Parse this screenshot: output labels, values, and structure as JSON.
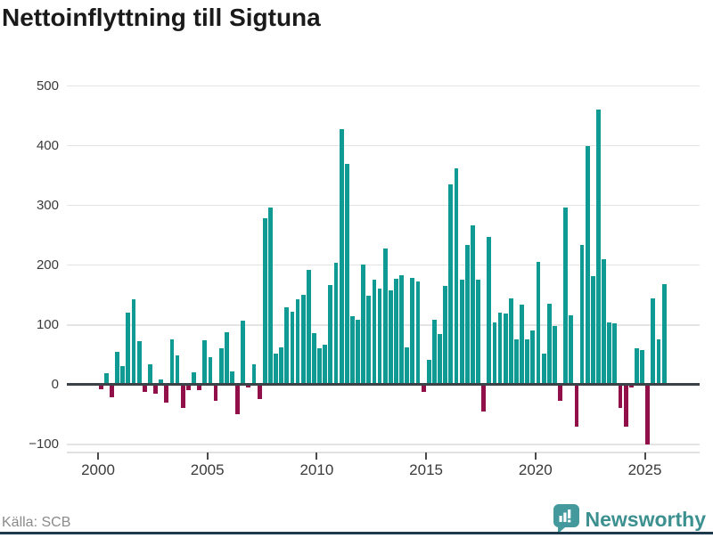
{
  "title": "Nettoinflyttning till Sigtuna",
  "source": "Källa: SCB",
  "brand": {
    "name": "Newsworthy"
  },
  "colors": {
    "positive": "#0f9b94",
    "negative": "#91104a",
    "grid": "#e4e4e4",
    "zero_line": "#3b4248",
    "axis_text": "#3a3a3a",
    "title_text": "#1a1a1a",
    "source_text": "#8b8b8b",
    "brand_teal": "#43999b",
    "bottom_strip": "#1d3a4f"
  },
  "chart_data": {
    "type": "bar",
    "title": "Nettoinflyttning till Sigtuna",
    "frequency": "quarterly",
    "start": "2000-Q1",
    "x_tick_years": [
      2000,
      2005,
      2010,
      2015,
      2020,
      2025
    ],
    "x_tick_labels": [
      "2000",
      "2005",
      "2010",
      "2015",
      "2020",
      "2025"
    ],
    "y_ticks": [
      500,
      400,
      300,
      200,
      100,
      0,
      -100
    ],
    "y_tick_labels": [
      "500",
      "400",
      "300",
      "200",
      "100",
      "0",
      "−100"
    ],
    "ylim": [
      -100,
      500
    ],
    "grid": true,
    "values": [
      -8,
      19,
      -22,
      55,
      30,
      120,
      142,
      73,
      -12,
      33,
      -15,
      8,
      -30,
      75,
      48,
      -40,
      -10,
      20,
      -10,
      74,
      46,
      -27,
      60,
      88,
      22,
      -50,
      107,
      -5,
      33,
      -24,
      278,
      296,
      51,
      62,
      129,
      122,
      142,
      150,
      192,
      86,
      60,
      66,
      167,
      203,
      428,
      369,
      114,
      108,
      201,
      148,
      176,
      160,
      228,
      158,
      177,
      183,
      62,
      178,
      173,
      -12,
      41,
      108,
      85,
      165,
      335,
      362,
      175,
      234,
      266,
      176,
      -45,
      247,
      103,
      120,
      118,
      144,
      75,
      133,
      76,
      91,
      205,
      52,
      135,
      98,
      -27,
      297,
      115,
      -71,
      234,
      400,
      182,
      460,
      210,
      104,
      102,
      -40,
      -71,
      -5,
      60,
      57,
      -100,
      144,
      75,
      168
    ]
  }
}
